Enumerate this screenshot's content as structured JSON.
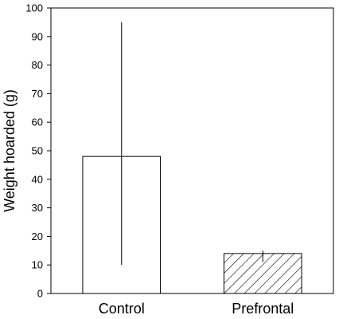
{
  "chart_data": {
    "type": "bar",
    "title": "",
    "xlabel": "",
    "ylabel": "Weight hoarded (g)",
    "ylim": [
      0,
      100
    ],
    "yticks": [
      0,
      10,
      20,
      30,
      40,
      50,
      60,
      70,
      80,
      90,
      100
    ],
    "categories": [
      "Control",
      "Prefrontal"
    ],
    "values": [
      48,
      14
    ],
    "error_low": [
      10,
      11
    ],
    "error_high": [
      95,
      15
    ],
    "bar_fills": [
      "open",
      "hatched"
    ],
    "grid": false,
    "legend": "none"
  }
}
